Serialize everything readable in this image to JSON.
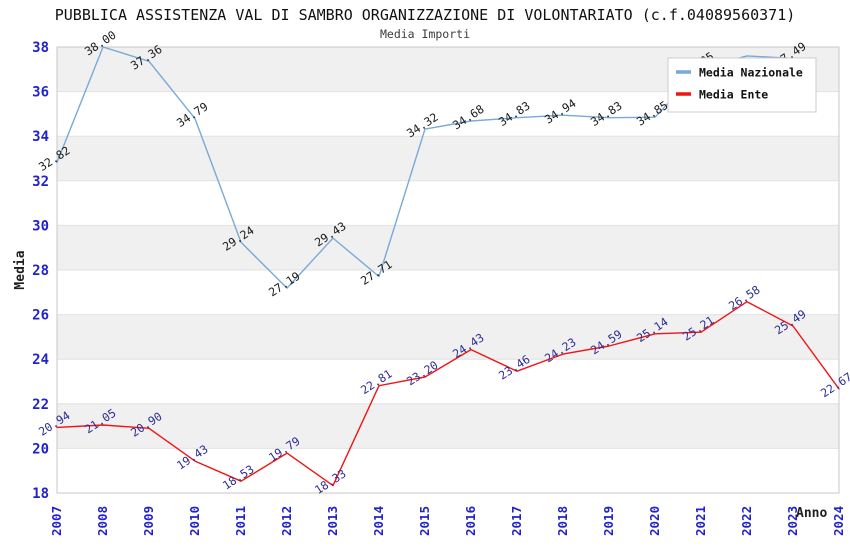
{
  "chart_data": {
    "type": "line",
    "title": "PUBBLICA ASSISTENZA VAL DI SAMBRO ORGANIZZAZIONE DI VOLONTARIATO (c.f.04089560371)",
    "subtitle": "Media Importi",
    "xlabel": "Anno",
    "ylabel": "Media",
    "categories": [
      "2007",
      "2008",
      "2009",
      "2010",
      "2011",
      "2012",
      "2013",
      "2014",
      "2015",
      "2016",
      "2017",
      "2018",
      "2019",
      "2020",
      "2021",
      "2022",
      "2023",
      "2024"
    ],
    "ylim": [
      18,
      38
    ],
    "ytick_step": 2,
    "grid": "alternating-horizontal-bands",
    "legend_position": "top-right",
    "series": [
      {
        "name": "Media Nazionale",
        "color": "#79a9d8",
        "label_color": "#1a1a1a",
        "values": [
          32.82,
          38.0,
          37.36,
          34.79,
          29.24,
          27.19,
          29.43,
          27.71,
          34.32,
          34.68,
          34.83,
          34.94,
          34.83,
          34.85,
          37.05,
          37.6,
          37.49,
          null
        ],
        "label_hidden_indices": [
          15
        ]
      },
      {
        "name": "Media Ente",
        "color": "#f01414",
        "label_color": "#2d2d96",
        "values": [
          20.94,
          21.05,
          20.9,
          19.43,
          18.53,
          19.79,
          18.33,
          22.81,
          23.2,
          24.43,
          23.46,
          24.23,
          24.59,
          25.14,
          25.21,
          26.58,
          25.49,
          22.67
        ],
        "label_hidden_indices": []
      }
    ],
    "colors": {
      "axis_tick": "#2222cc",
      "axis_title": "#1f1f1f",
      "band_fill": "#f0f0f0",
      "gridline": "#e2e2e2",
      "plot_border": "#c9c9c9",
      "legend_border": "#cccccc",
      "legend_background": "#ffffff"
    }
  }
}
